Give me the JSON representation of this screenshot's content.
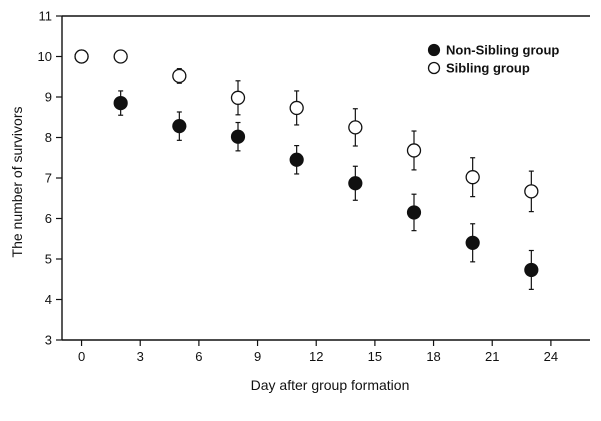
{
  "chart_data": {
    "type": "scatter",
    "xlabel": "Day after group formation",
    "ylabel": "The number of survivors",
    "xlim": [
      -1,
      26
    ],
    "ylim": [
      3,
      11
    ],
    "xticks": [
      0,
      3,
      6,
      9,
      12,
      15,
      18,
      21,
      24
    ],
    "yticks": [
      3,
      4,
      5,
      6,
      7,
      8,
      9,
      10,
      11
    ],
    "legend_position": "top-right",
    "series": [
      {
        "name": "Non-Sibling group",
        "marker": "filled-circle",
        "x": [
          0,
          2,
          5,
          8,
          11,
          14,
          17,
          20,
          23
        ],
        "y": [
          10.0,
          8.85,
          8.28,
          8.02,
          7.45,
          6.87,
          6.15,
          5.4,
          4.73
        ],
        "err": [
          0,
          0.3,
          0.35,
          0.35,
          0.35,
          0.42,
          0.45,
          0.47,
          0.48
        ]
      },
      {
        "name": "Sibling group",
        "marker": "open-circle",
        "x": [
          0,
          2,
          5,
          8,
          11,
          14,
          17,
          20,
          23
        ],
        "y": [
          10.0,
          10.0,
          9.52,
          8.98,
          8.73,
          8.25,
          7.68,
          7.02,
          6.67
        ],
        "err": [
          0,
          0,
          0.18,
          0.42,
          0.42,
          0.46,
          0.48,
          0.48,
          0.5
        ]
      }
    ]
  }
}
